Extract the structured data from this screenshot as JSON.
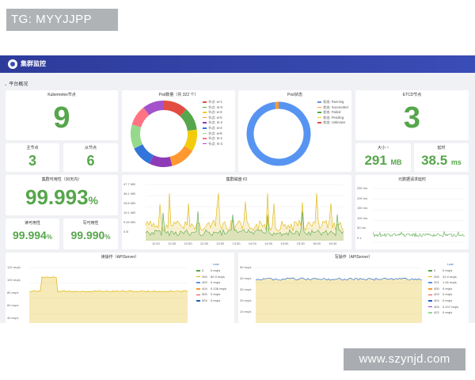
{
  "watermark_top": "TG: MYYJJPP",
  "watermark_bottom": "www.szynjd.com",
  "app": {
    "title": "集群监控"
  },
  "section": {
    "title": "平台概况"
  },
  "k8s": {
    "title": "Kubernetes节点",
    "value": "9"
  },
  "master": {
    "title": "主节点",
    "value": "3"
  },
  "worker": {
    "title": "从节点",
    "value": "6"
  },
  "pods": {
    "title": "Pod数量（共 322 个）",
    "legend": [
      "节点: w-1",
      "节点: m-0",
      "节点: w-3",
      "节点: w-0",
      "节点: m-2",
      "节点: w-4",
      "节点: w-8",
      "节点: m-1",
      "节点: m-2"
    ],
    "values": [
      38,
      36,
      34,
      40,
      36,
      34,
      38,
      32,
      34
    ],
    "colors": [
      "#e24d42",
      "#56a64b",
      "#f2cc0c",
      "#ff9830",
      "#8f3bb8",
      "#3274d9",
      "#96d98d",
      "#ff7383",
      "#a352cc"
    ]
  },
  "podstatus": {
    "title": "Pod状态",
    "legend": [
      "状态: Running",
      "状态: Succeeded",
      "状态: Failed",
      "状态: Pending",
      "状态: Unknown"
    ],
    "values": [
      316,
      6,
      0,
      0,
      0
    ],
    "colors": [
      "#5794f2",
      "#ff9830",
      "#56a64b",
      "#f2cc0c",
      "#e24d42"
    ]
  },
  "etcd": {
    "title": "ETCD节点",
    "value": "3"
  },
  "etcd_size": {
    "title": "大小 ~",
    "value": "291",
    "unit": "MB"
  },
  "etcd_latency": {
    "title": "延时",
    "value": "38.5",
    "unit": "ms"
  },
  "availability": {
    "title": "集群可用性（30天内）",
    "value": "99.993",
    "unit": "%"
  },
  "read_avail": {
    "title": "读可用性",
    "value": "99.994",
    "unit": "%"
  },
  "write_avail": {
    "title": "写可用性",
    "value": "99.990",
    "unit": "%"
  },
  "disk_io": {
    "title": "集群磁盘 IO",
    "yticks": [
      "47.7 MB",
      "38.1 MB",
      "28.6 MB",
      "19.1 MB",
      "9.54 MB",
      "0 B"
    ],
    "xticks": [
      "11:00",
      "11:30",
      "12:00",
      "12:30",
      "13:00",
      "13:30",
      "14:00",
      "14:30",
      "15:00",
      "15:30",
      "16:00",
      "16:30"
    ],
    "colors": [
      "#56a64b",
      "#e0b400"
    ]
  },
  "meta_latency": {
    "title": "元数据请求延时",
    "yticks": [
      "250 ms",
      "200 ms",
      "150 ms",
      "100 ms",
      "50 ms",
      "0 s"
    ],
    "color": "#56a64b"
  },
  "read_ops": {
    "title": "读操作（APIServer）",
    "yticks": [
      "120 req/s",
      "100 req/s",
      "80 req/s",
      "60 req/s",
      "40 req/s"
    ],
    "legend_header": "Last",
    "rows": [
      {
        "code": "0",
        "value": "0 req/s",
        "color": "#56a64b"
      },
      {
        "code": "200",
        "value": "80.3 req/s",
        "color": "#e0b400"
      },
      {
        "code": "400",
        "value": "0 req/s",
        "color": "#5794f2"
      },
      {
        "code": "404",
        "value": "0.136 req/s",
        "color": "#ff9830"
      },
      {
        "code": "500",
        "value": "0 req/s",
        "color": "#e24d42"
      },
      {
        "code": "504",
        "value": "0 req/s",
        "color": "#1f60c4"
      }
    ]
  },
  "write_ops": {
    "title": "写操作（APIServer）",
    "yticks": [
      "50 req/s",
      "40 req/s",
      "30 req/s",
      "20 req/s",
      "10 req/s"
    ],
    "legend_header": "Last",
    "rows": [
      {
        "code": "0",
        "value": "0 req/s",
        "color": "#56a64b"
      },
      {
        "code": "200",
        "value": "41.4 req/s",
        "color": "#e0b400"
      },
      {
        "code": "201",
        "value": "1.34 req/s",
        "color": "#5794f2"
      },
      {
        "code": "400",
        "value": "0 req/s",
        "color": "#ff9830"
      },
      {
        "code": "403",
        "value": "0 req/s",
        "color": "#e24d42"
      },
      {
        "code": "404",
        "value": "0 req/s",
        "color": "#1f60c4"
      },
      {
        "code": "409",
        "value": "0.107 req/s",
        "color": "#8f3bb8"
      },
      {
        "code": "422",
        "value": "0 req/s",
        "color": "#96d98d"
      }
    ]
  }
}
